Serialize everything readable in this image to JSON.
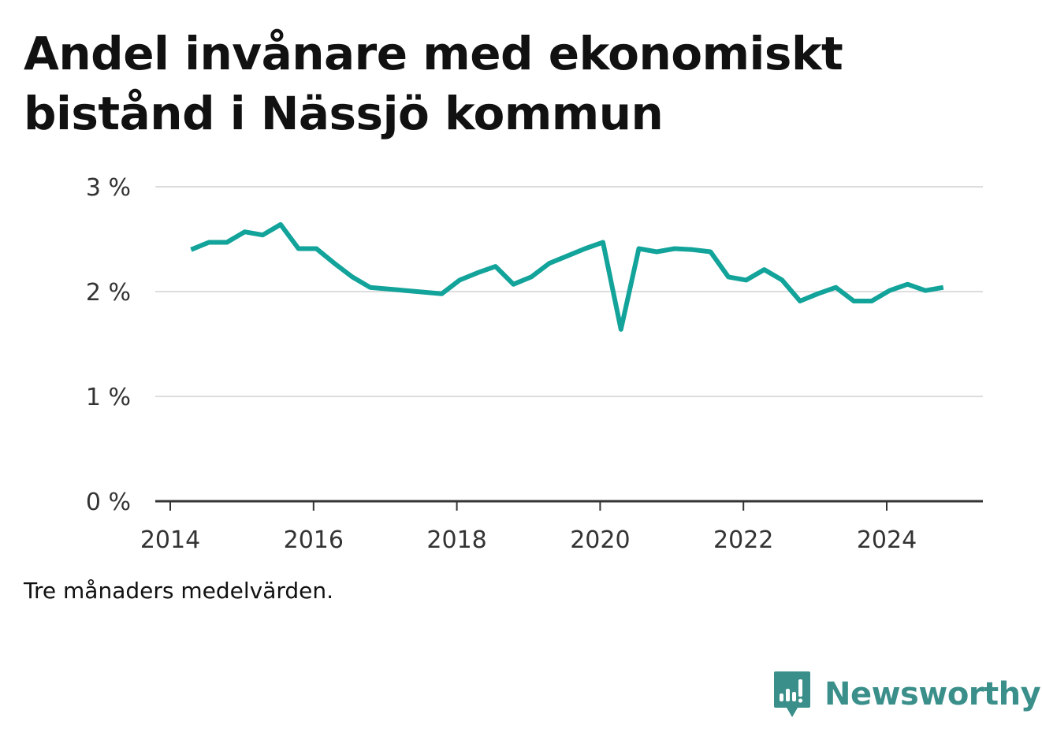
{
  "title": "Andel invånare med ekonomiskt bistånd i Nässjö kommun",
  "note": "Tre månaders medelvärden.",
  "brand": {
    "name": "Newsworthy",
    "icon": "bar-chart-speech-bubble-icon",
    "color": "#3a8f8a"
  },
  "chart_data": {
    "type": "line",
    "title": "Andel invånare med ekonomiskt bistånd i Nässjö kommun",
    "xlabel": "",
    "ylabel": "",
    "xlim": [
      2014,
      2025.35
    ],
    "ylim": [
      0,
      3
    ],
    "x_ticks": [
      2014,
      2016,
      2018,
      2020,
      2022,
      2024
    ],
    "x_tick_labels": [
      "2014",
      "2016",
      "2018",
      "2020",
      "2022",
      "2024"
    ],
    "y_ticks": [
      0,
      1,
      2,
      3
    ],
    "y_tick_labels": [
      "0 %",
      "1 %",
      "2 %",
      "3 %"
    ],
    "grid": true,
    "legend": "none",
    "series": [
      {
        "color": "#12a39a",
        "x": [
          2014.29,
          2014.54,
          2014.79,
          2015.04,
          2015.29,
          2015.54,
          2015.79,
          2016.04,
          2016.29,
          2016.54,
          2016.79,
          2017.79,
          2018.04,
          2018.29,
          2018.54,
          2018.79,
          2019.04,
          2019.29,
          2019.54,
          2019.79,
          2020.04,
          2020.29,
          2020.54,
          2020.79,
          2021.04,
          2021.29,
          2021.54,
          2021.79,
          2022.04,
          2022.29,
          2022.54,
          2022.79,
          2023.04,
          2023.29,
          2023.54,
          2023.79,
          2024.04,
          2024.29,
          2024.54,
          2024.79
        ],
        "values": [
          2.4,
          2.47,
          2.47,
          2.57,
          2.54,
          2.64,
          2.41,
          2.41,
          2.27,
          2.14,
          2.04,
          1.98,
          2.11,
          2.18,
          2.24,
          2.07,
          2.14,
          2.27,
          2.34,
          2.41,
          2.47,
          1.64,
          2.41,
          2.38,
          2.41,
          2.4,
          2.38,
          2.14,
          2.11,
          2.21,
          2.11,
          1.91,
          1.98,
          2.04,
          1.91,
          1.91,
          2.01,
          2.07,
          2.01,
          2.04
        ]
      }
    ]
  }
}
